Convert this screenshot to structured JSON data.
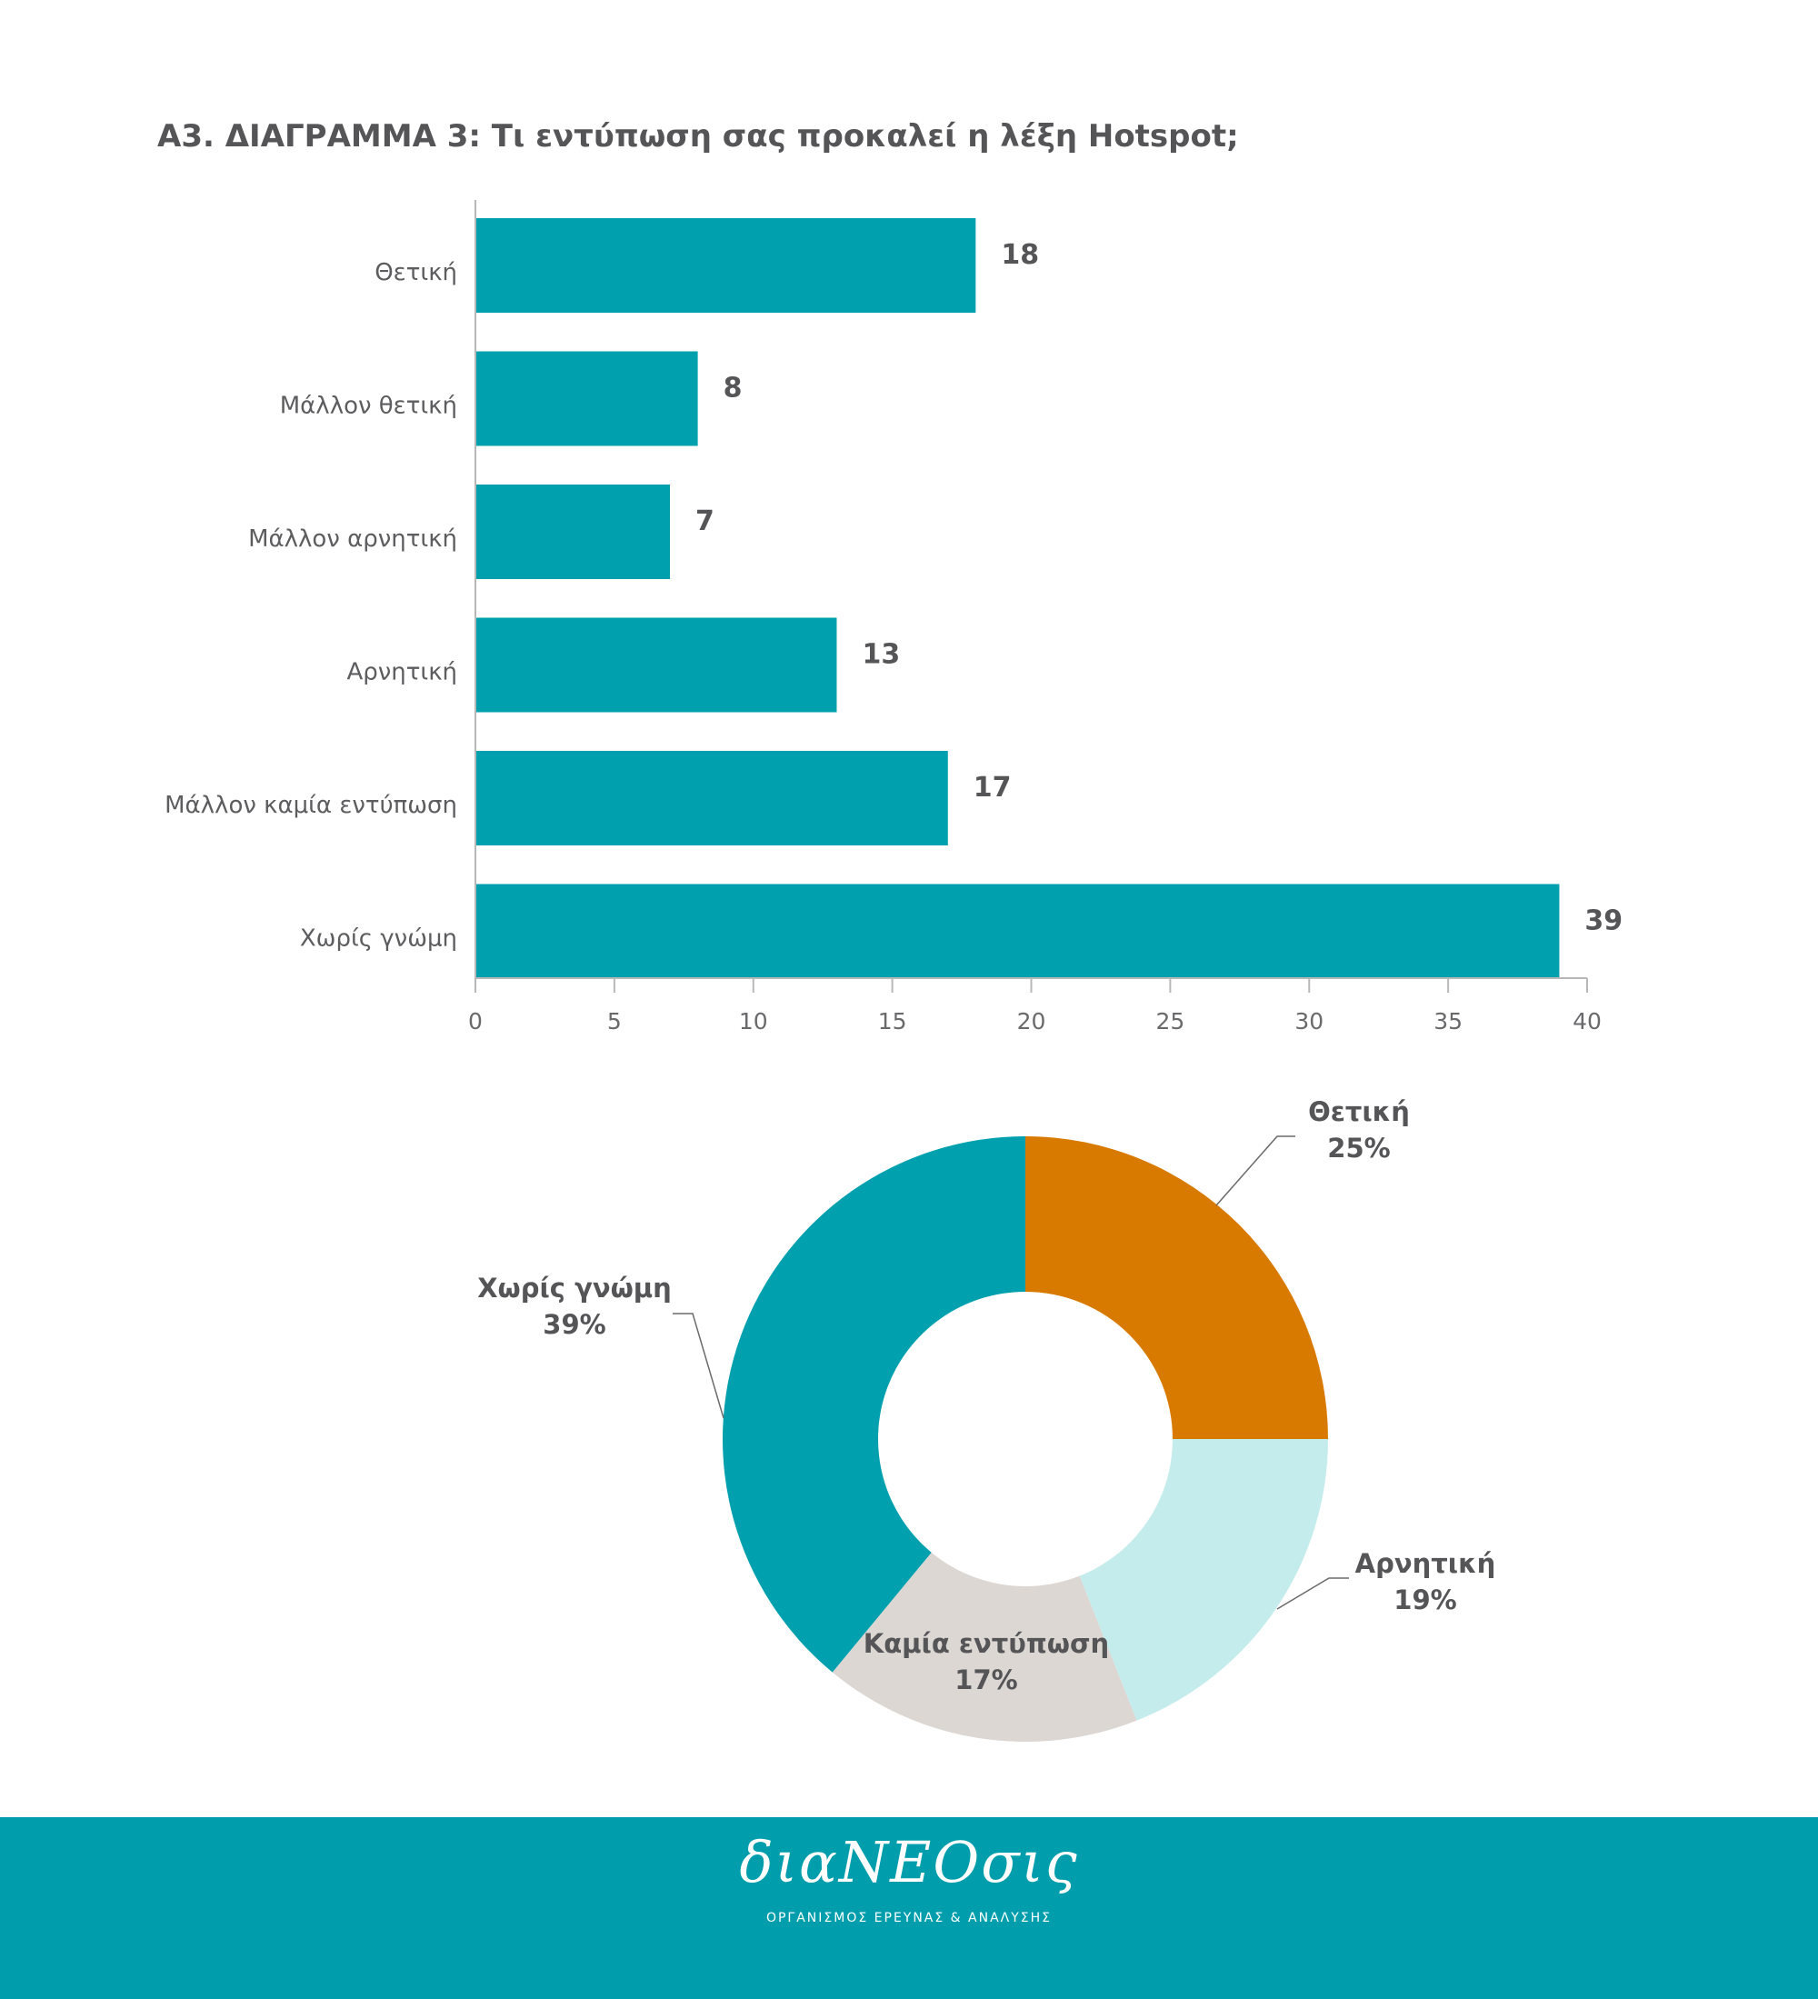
{
  "title": "Α3. ΔΙΑΓΡΑΜΜΑ 3: Τι εντύπωση σας προκαλεί η λέξη Hotspot;",
  "chart_data": [
    {
      "type": "bar",
      "orientation": "horizontal",
      "categories": [
        "Θετική",
        "Μάλλον θετική",
        "Μάλλον αρνητική",
        "Αρνητική",
        "Μάλλον καμία εντύπωση",
        "Χωρίς γνώμη"
      ],
      "values": [
        18,
        8,
        7,
        13,
        17,
        39
      ],
      "value_labels": [
        "18",
        "8",
        "7",
        "13",
        "17",
        "39"
      ],
      "xlim": [
        0,
        40
      ],
      "ticks": [
        0,
        5,
        10,
        15,
        20,
        25,
        30,
        35,
        40
      ],
      "tick_labels": [
        "0",
        "5",
        "10",
        "15",
        "20",
        "25",
        "30",
        "35",
        "40"
      ],
      "bar_color": "#00a0ae",
      "axis_color": "#b8b8b8",
      "grid": false,
      "legend": "none"
    },
    {
      "type": "pie",
      "donut": true,
      "start": "top",
      "direction": "clockwise",
      "slices": [
        {
          "label": "Θετική",
          "value": 25,
          "display": "25%",
          "color": "#d97a00"
        },
        {
          "label": "Αρνητική",
          "value": 19,
          "display": "19%",
          "color": "#c5ecec"
        },
        {
          "label": "Καμία εντύπωση",
          "value": 17,
          "display": "17%",
          "color": "#dcd7d3"
        },
        {
          "label": "Χωρίς γνώμη",
          "value": 39,
          "display": "39%",
          "color": "#00a0ae"
        }
      ],
      "leader_color": "#6a6a6a",
      "legend": "none"
    }
  ],
  "footer": {
    "logo_text": "διαΝΕΟσις",
    "tagline": "ΟΡΓΑΝΙΣΜΟΣ ΕΡΕΥΝΑΣ & ΑΝΑΛΥΣΗΣ",
    "background": "#009eac"
  }
}
